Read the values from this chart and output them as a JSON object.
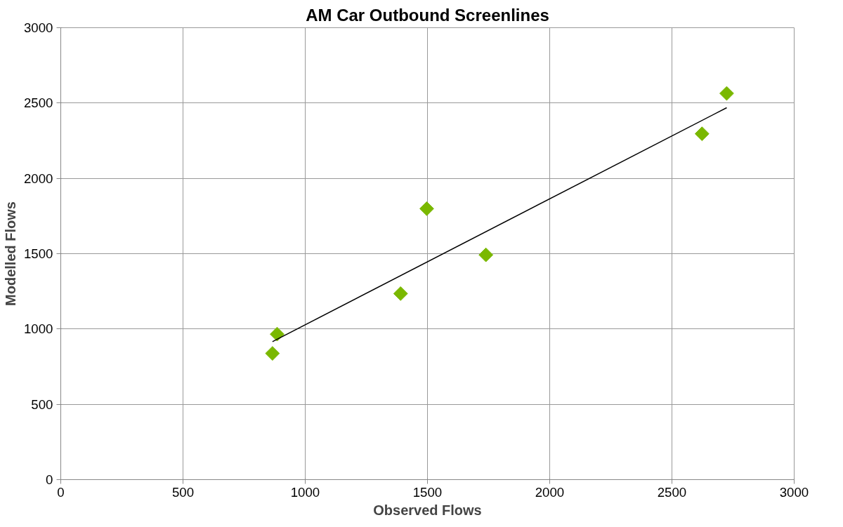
{
  "chart_data": {
    "type": "scatter",
    "title": "AM Car Outbound Screenlines",
    "xlabel": "Observed Flows",
    "ylabel": "Modelled Flows",
    "series": [
      {
        "color": "#7ab800",
        "marker": "diamond",
        "x": [
          866,
          885,
          1390,
          1497,
          1739,
          2623,
          2724
        ],
        "values": [
          838,
          966,
          1235,
          1799,
          1492,
          2296,
          2564
        ]
      },
      {
        "type": "line",
        "color": "#000000",
        "marker": "none",
        "x": [
          866,
          2724
        ],
        "values": [
          916,
          2469
        ]
      }
    ],
    "xlim": [
      0,
      3000
    ],
    "ylim": [
      0,
      3000
    ],
    "xticks": [
      0,
      500,
      1000,
      1500,
      2000,
      2500,
      3000
    ],
    "yticks": [
      0,
      500,
      1000,
      1500,
      2000,
      2500,
      3000
    ],
    "grid": true
  }
}
